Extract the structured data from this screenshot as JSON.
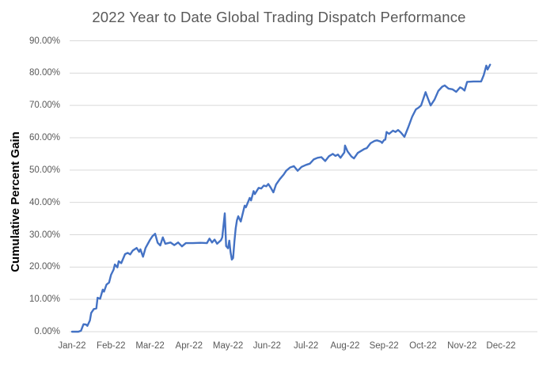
{
  "chart_data": {
    "type": "line",
    "title": "2022 Year to Date Global Trading Dispatch Performance",
    "xlabel": "",
    "ylabel": "Cumulative Percent Gain",
    "x_tick_labels": [
      "Jan-22",
      "Feb-22",
      "Mar-22",
      "Apr-22",
      "May-22",
      "Jun-22",
      "Jul-22",
      "Aug-22",
      "Sep-22",
      "Oct-22",
      "Nov-22",
      "Dec-22"
    ],
    "y_ticks": [
      0,
      10,
      20,
      30,
      40,
      50,
      60,
      70,
      80,
      90
    ],
    "y_tick_labels": [
      "0.00%",
      "10.00%",
      "20.00%",
      "30.00%",
      "40.00%",
      "50.00%",
      "60.00%",
      "70.00%",
      "80.00%",
      "90.00%"
    ],
    "ylim": [
      0,
      90
    ],
    "grid": true,
    "legend": "none",
    "series": [
      {
        "name": "Cumulative Percent Gain",
        "color": "#4472C4",
        "points": [
          [
            "2022-01-01",
            0.0
          ],
          [
            "2022-01-06",
            0.0
          ],
          [
            "2022-01-08",
            0.3
          ],
          [
            "2022-01-10",
            2.3
          ],
          [
            "2022-01-12",
            2.2
          ],
          [
            "2022-01-13",
            1.8
          ],
          [
            "2022-01-15",
            3.5
          ],
          [
            "2022-01-16",
            5.8
          ],
          [
            "2022-01-18",
            7.0
          ],
          [
            "2022-01-20",
            7.2
          ],
          [
            "2022-01-21",
            10.5
          ],
          [
            "2022-01-23",
            10.2
          ],
          [
            "2022-01-25",
            13.0
          ],
          [
            "2022-01-26",
            12.4
          ],
          [
            "2022-01-28",
            14.6
          ],
          [
            "2022-01-30",
            15.2
          ],
          [
            "2022-02-01",
            17.6
          ],
          [
            "2022-02-03",
            19.2
          ],
          [
            "2022-02-04",
            20.8
          ],
          [
            "2022-02-06",
            19.9
          ],
          [
            "2022-02-07",
            21.8
          ],
          [
            "2022-02-09",
            21.2
          ],
          [
            "2022-02-12",
            24.0
          ],
          [
            "2022-02-14",
            24.4
          ],
          [
            "2022-02-16",
            23.9
          ],
          [
            "2022-02-18",
            25.1
          ],
          [
            "2022-02-21",
            25.9
          ],
          [
            "2022-02-23",
            24.7
          ],
          [
            "2022-02-24",
            25.5
          ],
          [
            "2022-02-26",
            23.2
          ],
          [
            "2022-02-28",
            25.9
          ],
          [
            "2022-03-01",
            28.4
          ],
          [
            "2022-03-03",
            29.6
          ],
          [
            "2022-03-05",
            30.3
          ],
          [
            "2022-03-07",
            27.5
          ],
          [
            "2022-03-09",
            26.7
          ],
          [
            "2022-03-11",
            29.2
          ],
          [
            "2022-03-13",
            27.2
          ],
          [
            "2022-03-17",
            27.6
          ],
          [
            "2022-03-20",
            26.8
          ],
          [
            "2022-03-23",
            27.6
          ],
          [
            "2022-03-26",
            26.4
          ],
          [
            "2022-03-29",
            27.4
          ],
          [
            "2022-04-04",
            27.4
          ],
          [
            "2022-04-10",
            27.5
          ],
          [
            "2022-04-15",
            27.4
          ],
          [
            "2022-04-17",
            28.8
          ],
          [
            "2022-04-19",
            27.6
          ],
          [
            "2022-04-21",
            28.5
          ],
          [
            "2022-04-23",
            27.2
          ],
          [
            "2022-04-26",
            28.3
          ],
          [
            "2022-04-27",
            29.2
          ],
          [
            "2022-04-29",
            36.6
          ],
          [
            "2022-04-30",
            26.5
          ],
          [
            "2022-05-01",
            25.8
          ],
          [
            "2022-05-02",
            28.2
          ],
          [
            "2022-05-03",
            24.6
          ],
          [
            "2022-05-04",
            22.3
          ],
          [
            "2022-05-05",
            22.8
          ],
          [
            "2022-05-06",
            28.0
          ],
          [
            "2022-05-07",
            32.0
          ],
          [
            "2022-05-08",
            34.5
          ],
          [
            "2022-05-09",
            35.7
          ],
          [
            "2022-05-11",
            34.1
          ],
          [
            "2022-05-14",
            39.0
          ],
          [
            "2022-05-15",
            38.5
          ],
          [
            "2022-05-18",
            41.4
          ],
          [
            "2022-05-19",
            40.6
          ],
          [
            "2022-05-21",
            43.5
          ],
          [
            "2022-05-22",
            42.6
          ],
          [
            "2022-05-25",
            44.5
          ],
          [
            "2022-05-27",
            44.3
          ],
          [
            "2022-05-29",
            45.2
          ],
          [
            "2022-05-31",
            45.0
          ],
          [
            "2022-06-02",
            45.7
          ],
          [
            "2022-06-04",
            44.5
          ],
          [
            "2022-06-06",
            43.1
          ],
          [
            "2022-06-08",
            45.5
          ],
          [
            "2022-06-11",
            47.2
          ],
          [
            "2022-06-14",
            48.6
          ],
          [
            "2022-06-16",
            49.8
          ],
          [
            "2022-06-19",
            50.8
          ],
          [
            "2022-06-22",
            51.2
          ],
          [
            "2022-06-25",
            49.8
          ],
          [
            "2022-06-28",
            51.0
          ],
          [
            "2022-07-01",
            51.6
          ],
          [
            "2022-07-04",
            52.0
          ],
          [
            "2022-07-07",
            53.3
          ],
          [
            "2022-07-10",
            53.8
          ],
          [
            "2022-07-13",
            54.0
          ],
          [
            "2022-07-16",
            52.8
          ],
          [
            "2022-07-19",
            54.3
          ],
          [
            "2022-07-22",
            55.0
          ],
          [
            "2022-07-24",
            54.4
          ],
          [
            "2022-07-26",
            54.8
          ],
          [
            "2022-07-28",
            53.8
          ],
          [
            "2022-07-31",
            55.5
          ],
          [
            "2022-08-01",
            57.6
          ],
          [
            "2022-08-03",
            55.8
          ],
          [
            "2022-08-06",
            54.2
          ],
          [
            "2022-08-08",
            53.6
          ],
          [
            "2022-08-11",
            55.3
          ],
          [
            "2022-08-13",
            55.8
          ],
          [
            "2022-08-16",
            56.5
          ],
          [
            "2022-08-18",
            56.8
          ],
          [
            "2022-08-21",
            58.3
          ],
          [
            "2022-08-24",
            59.0
          ],
          [
            "2022-08-26",
            59.2
          ],
          [
            "2022-08-29",
            58.8
          ],
          [
            "2022-08-30",
            58.4
          ],
          [
            "2022-09-01",
            59.3
          ],
          [
            "2022-09-02",
            59.4
          ],
          [
            "2022-09-03",
            61.8
          ],
          [
            "2022-09-05",
            61.2
          ],
          [
            "2022-09-08",
            62.2
          ],
          [
            "2022-09-10",
            61.8
          ],
          [
            "2022-09-12",
            62.4
          ],
          [
            "2022-09-14",
            61.7
          ],
          [
            "2022-09-17",
            60.3
          ],
          [
            "2022-09-20",
            63.3
          ],
          [
            "2022-09-23",
            66.5
          ],
          [
            "2022-09-26",
            68.8
          ],
          [
            "2022-09-28",
            69.3
          ],
          [
            "2022-09-30",
            70.0
          ],
          [
            "2022-10-03",
            74.1
          ],
          [
            "2022-10-05",
            72.0
          ],
          [
            "2022-10-07",
            70.0
          ],
          [
            "2022-10-10",
            71.8
          ],
          [
            "2022-10-13",
            74.5
          ],
          [
            "2022-10-16",
            75.8
          ],
          [
            "2022-10-18",
            76.2
          ],
          [
            "2022-10-21",
            75.2
          ],
          [
            "2022-10-24",
            75.0
          ],
          [
            "2022-10-27",
            74.2
          ],
          [
            "2022-10-30",
            75.6
          ],
          [
            "2022-11-01",
            75.3
          ],
          [
            "2022-11-03",
            74.6
          ],
          [
            "2022-11-05",
            77.3
          ],
          [
            "2022-11-10",
            77.4
          ],
          [
            "2022-11-16",
            77.4
          ],
          [
            "2022-11-18",
            79.4
          ],
          [
            "2022-11-20",
            82.3
          ],
          [
            "2022-11-21",
            81.1
          ],
          [
            "2022-11-23",
            82.6
          ]
        ]
      }
    ],
    "colors": {
      "line": "#4472C4",
      "gridline": "#D9D9D9",
      "title_text": "#595959",
      "tick_text": "#595959",
      "axis_title_text": "#000000",
      "background": "#FFFFFF"
    }
  }
}
